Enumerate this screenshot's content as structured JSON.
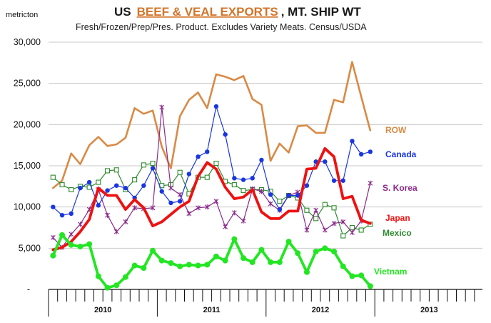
{
  "chart_data": {
    "type": "line",
    "title": {
      "prefix": "US",
      "highlight": "BEEF & VEAL EXPORTS",
      "suffix": ", MT. SHIP WT"
    },
    "subtitle": "Fresh/Frozen/Prep/Pres. Product. Excludes Variety Meats. Census/USDA",
    "ylabel": "metricton",
    "ylim": [
      0,
      30000
    ],
    "yticks": [
      {
        "value": 0,
        "label": "-"
      },
      {
        "value": 5000,
        "label": "5,000"
      },
      {
        "value": 10000,
        "label": "10,000"
      },
      {
        "value": 15000,
        "label": "15,000"
      },
      {
        "value": 20000,
        "label": "20,000"
      },
      {
        "value": 25000,
        "label": "25,000"
      },
      {
        "value": 30000,
        "label": "30,000"
      }
    ],
    "years": [
      "2010",
      "2011",
      "2012",
      "2013"
    ],
    "months_per_year": 12,
    "x_start_month_index": -0.5,
    "series": [
      {
        "name": "ROW",
        "color": "#d98a45",
        "marker": "none",
        "values": [
          12300,
          13200,
          16500,
          15200,
          17500,
          18500,
          17400,
          17600,
          18400,
          22000,
          21300,
          21700,
          17300,
          14700,
          21000,
          23000,
          23900,
          22000,
          26100,
          25800,
          25400,
          25900,
          23100,
          22400,
          15600,
          17700,
          16600,
          19800,
          19900,
          19000,
          19000,
          23000,
          22700,
          27600,
          23400,
          19300
        ]
      },
      {
        "name": "Canada",
        "color": "#1a36e0",
        "marker": "dot",
        "values": [
          10000,
          9000,
          9200,
          12300,
          13000,
          10200,
          12000,
          12600,
          12300,
          11100,
          12600,
          14700,
          11900,
          10500,
          10700,
          14000,
          16100,
          16700,
          22200,
          18800,
          13500,
          13300,
          13500,
          15700,
          11500,
          9700,
          11400,
          11400,
          12600,
          15500,
          15500,
          13200,
          13200,
          18000,
          16400,
          16700
        ]
      },
      {
        "name": "S. Korea",
        "color": "#8a2a8a",
        "marker": "cross",
        "values": [
          6300,
          5100,
          6700,
          7900,
          9700,
          12100,
          9000,
          7000,
          8200,
          9900,
          9800,
          9900,
          22100,
          12300,
          11500,
          9200,
          9900,
          10000,
          10700,
          7600,
          9300,
          8300,
          12200,
          11900,
          10400,
          9600,
          11400,
          11800,
          7200,
          9600,
          7200,
          8000,
          8200,
          6900,
          8300,
          12900
        ]
      },
      {
        "name": "Japan",
        "color": "#ee1111",
        "marker": "none",
        "values": [
          4800,
          5100,
          5800,
          7000,
          8500,
          12300,
          11400,
          11400,
          9700,
          10900,
          9900,
          7700,
          8200,
          9100,
          10000,
          10700,
          13700,
          15400,
          14600,
          12400,
          11000,
          11200,
          12100,
          9400,
          8600,
          8600,
          9500,
          9500,
          14600,
          14700,
          17100,
          16100,
          11000,
          11300,
          8400,
          8000
        ]
      },
      {
        "name": "Mexico",
        "color": "#2e8b2e",
        "marker": "square",
        "values": [
          13600,
          12700,
          12100,
          12500,
          12400,
          13000,
          14400,
          14500,
          12100,
          13300,
          15100,
          15300,
          12600,
          12700,
          14200,
          11600,
          13600,
          13600,
          15300,
          13100,
          12700,
          12000,
          12100,
          12100,
          11900,
          10700,
          11400,
          11100,
          9600,
          8600,
          10300,
          9900,
          6500,
          7500,
          7200,
          7900
        ]
      },
      {
        "name": "Vietnam",
        "color": "#22e622",
        "marker": "dot",
        "values": [
          4100,
          6600,
          5400,
          5200,
          5500,
          1600,
          200,
          500,
          1500,
          2900,
          2600,
          4700,
          3500,
          3200,
          2800,
          3000,
          2900,
          3000,
          4000,
          3500,
          6100,
          3800,
          3300,
          4800,
          3300,
          3300,
          5800,
          4400,
          2100,
          4600,
          5000,
          4600,
          2800,
          1600,
          1700,
          400
        ]
      }
    ]
  }
}
